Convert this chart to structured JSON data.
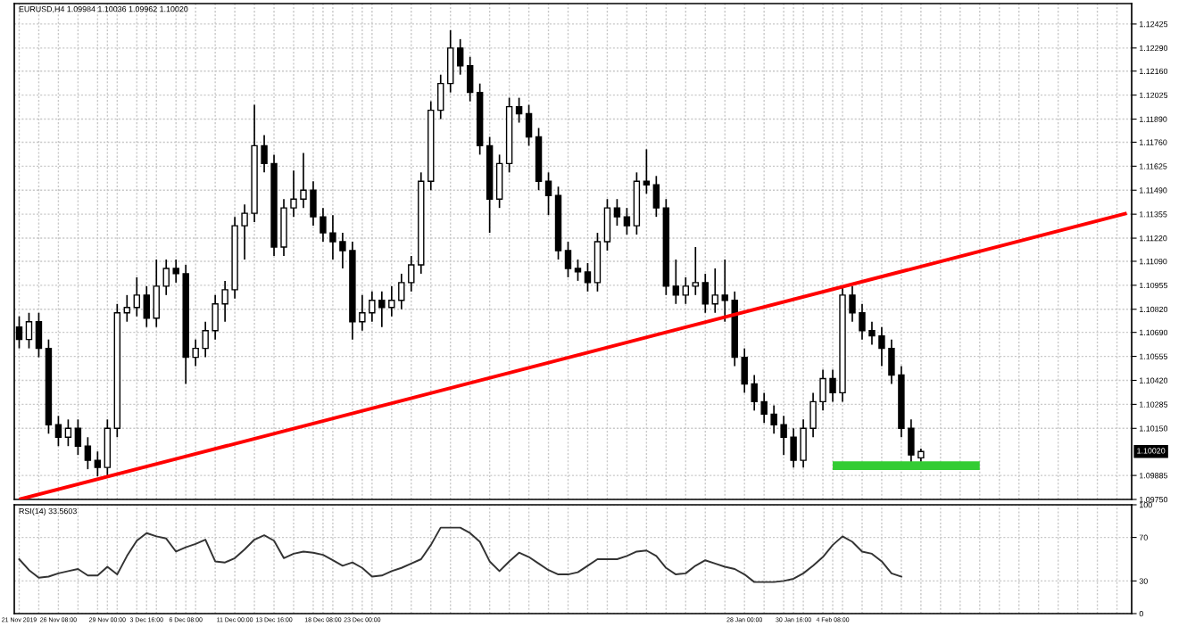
{
  "chart_data": [
    {
      "type": "candlestick",
      "title": "EURUSD,H4 1.09984 1.10036 1.09962 1.10020",
      "color": "#000000",
      "categories": [
        null,
        null,
        null,
        null,
        null,
        null,
        null,
        null,
        null,
        null,
        null,
        null,
        null,
        null,
        null,
        null,
        null,
        null,
        null,
        null,
        null,
        null,
        null,
        null,
        null,
        null,
        null,
        null,
        null,
        null,
        null,
        null,
        null,
        null,
        null,
        null,
        null,
        null,
        null,
        null,
        null,
        null,
        null,
        null,
        null,
        null,
        null,
        null,
        null,
        null,
        null,
        null,
        null,
        null,
        null,
        null,
        null,
        null,
        null,
        null,
        null,
        null,
        null,
        null,
        null,
        null,
        null,
        null,
        null,
        null,
        null,
        null,
        null,
        null,
        null,
        null,
        null,
        null,
        null,
        null,
        null,
        null,
        null,
        null,
        null,
        null,
        null,
        null,
        null,
        null,
        null,
        null,
        null,
        null,
        null,
        null,
        null,
        null,
        null,
        null,
        null,
        null,
        null,
        null,
        null,
        null,
        null,
        null,
        null,
        null,
        null,
        null,
        null,
        null
      ],
      "ohlc": [
        [
          1.1072,
          1.1078,
          1.106,
          1.1065
        ],
        [
          1.1065,
          1.108,
          1.106,
          1.1075
        ],
        [
          1.1075,
          1.108,
          1.1055,
          1.106
        ],
        [
          1.106,
          1.1065,
          1.1012,
          1.1017
        ],
        [
          1.1017,
          1.1022,
          1.1005,
          1.101
        ],
        [
          1.101,
          1.102,
          1.1005,
          1.1015
        ],
        [
          1.1015,
          1.102,
          1.1,
          1.1005
        ],
        [
          1.1005,
          1.101,
          1.0992,
          1.0997
        ],
        [
          1.0997,
          1.1002,
          1.0988,
          1.0993
        ],
        [
          1.0993,
          1.102,
          1.0988,
          1.1015
        ],
        [
          1.1015,
          1.1085,
          1.101,
          1.108
        ],
        [
          1.108,
          1.109,
          1.1075,
          1.1083
        ],
        [
          1.1083,
          1.11,
          1.1078,
          1.109
        ],
        [
          1.109,
          1.1095,
          1.1072,
          1.1077
        ],
        [
          1.1077,
          1.111,
          1.1072,
          1.1095
        ],
        [
          1.1095,
          1.111,
          1.109,
          1.1105
        ],
        [
          1.1105,
          1.111,
          1.1097,
          1.1102
        ],
        [
          1.1102,
          1.1107,
          1.104,
          1.1055
        ],
        [
          1.1055,
          1.1065,
          1.105,
          1.106
        ],
        [
          1.106,
          1.1075,
          1.1055,
          1.107
        ],
        [
          1.107,
          1.109,
          1.1065,
          1.1085
        ],
        [
          1.1085,
          1.1098,
          1.1075,
          1.1093
        ],
        [
          1.1093,
          1.1134,
          1.1088,
          1.1129
        ],
        [
          1.1129,
          1.1141,
          1.111,
          1.1136
        ],
        [
          1.1136,
          1.1197,
          1.1131,
          1.1174
        ],
        [
          1.1174,
          1.118,
          1.1159,
          1.1164
        ],
        [
          1.1164,
          1.1169,
          1.1112,
          1.1117
        ],
        [
          1.1117,
          1.1144,
          1.1112,
          1.1139
        ],
        [
          1.1139,
          1.116,
          1.1134,
          1.1144
        ],
        [
          1.1144,
          1.117,
          1.1139,
          1.1149
        ],
        [
          1.1149,
          1.1154,
          1.1129,
          1.1134
        ],
        [
          1.1134,
          1.1139,
          1.112,
          1.1125
        ],
        [
          1.1125,
          1.1135,
          1.111,
          1.112
        ],
        [
          1.112,
          1.1125,
          1.1105,
          1.1115
        ],
        [
          1.1115,
          1.112,
          1.1065,
          1.1075
        ],
        [
          1.1075,
          1.109,
          1.107,
          1.108
        ],
        [
          1.108,
          1.1092,
          1.1075,
          1.1087
        ],
        [
          1.1087,
          1.1092,
          1.1072,
          1.1083
        ],
        [
          1.1083,
          1.1095,
          1.1078,
          1.1087
        ],
        [
          1.1087,
          1.1102,
          1.1082,
          1.1097
        ],
        [
          1.1097,
          1.1112,
          1.1092,
          1.1107
        ],
        [
          1.1107,
          1.1159,
          1.1102,
          1.1154
        ],
        [
          1.1154,
          1.1199,
          1.1149,
          1.1194
        ],
        [
          1.1194,
          1.1214,
          1.1189,
          1.1209
        ],
        [
          1.1209,
          1.1239,
          1.1204,
          1.1229
        ],
        [
          1.1229,
          1.1234,
          1.1214,
          1.1219
        ],
        [
          1.1219,
          1.1224,
          1.1199,
          1.1204
        ],
        [
          1.1204,
          1.1209,
          1.1169,
          1.1174
        ],
        [
          1.1174,
          1.1179,
          1.1125,
          1.1144
        ],
        [
          1.1144,
          1.1169,
          1.1139,
          1.1164
        ],
        [
          1.1164,
          1.1201,
          1.1159,
          1.1196
        ],
        [
          1.1196,
          1.1201,
          1.1187,
          1.1192
        ],
        [
          1.1192,
          1.1197,
          1.1174,
          1.1179
        ],
        [
          1.1179,
          1.1184,
          1.1149,
          1.1154
        ],
        [
          1.1154,
          1.1159,
          1.1135,
          1.1146
        ],
        [
          1.1146,
          1.1151,
          1.111,
          1.1115
        ],
        [
          1.1115,
          1.112,
          1.11,
          1.1105
        ],
        [
          1.1105,
          1.111,
          1.1098,
          1.1103
        ],
        [
          1.1103,
          1.1108,
          1.1092,
          1.1097
        ],
        [
          1.1097,
          1.1125,
          1.1092,
          1.112
        ],
        [
          1.112,
          1.1144,
          1.1115,
          1.1139
        ],
        [
          1.1139,
          1.1144,
          1.1129,
          1.1134
        ],
        [
          1.1134,
          1.1139,
          1.1124,
          1.1129
        ],
        [
          1.1129,
          1.1159,
          1.1124,
          1.1154
        ],
        [
          1.1154,
          1.1172,
          1.1147,
          1.1152
        ],
        [
          1.1152,
          1.1157,
          1.1134,
          1.1139
        ],
        [
          1.1139,
          1.1144,
          1.109,
          1.1095
        ],
        [
          1.1095,
          1.111,
          1.1085,
          1.109
        ],
        [
          1.109,
          1.11,
          1.1085,
          1.1095
        ],
        [
          1.1095,
          1.1117,
          1.109,
          1.1097
        ],
        [
          1.1097,
          1.1102,
          1.108,
          1.1085
        ],
        [
          1.1085,
          1.1105,
          1.108,
          1.109
        ],
        [
          1.109,
          1.111,
          1.1075,
          1.1087
        ],
        [
          1.1087,
          1.1092,
          1.105,
          1.1055
        ],
        [
          1.1055,
          1.106,
          1.1035,
          1.104
        ],
        [
          1.104,
          1.1045,
          1.1025,
          1.103
        ],
        [
          1.103,
          1.1035,
          1.1018,
          1.1023
        ],
        [
          1.1023,
          1.1028,
          1.1012,
          1.1017
        ],
        [
          1.1017,
          1.1022,
          1.1,
          1.101
        ],
        [
          1.101,
          1.1015,
          1.0993,
          1.0997
        ],
        [
          1.0997,
          1.102,
          1.0993,
          1.1015
        ],
        [
          1.1015,
          1.1035,
          1.101,
          1.103
        ],
        [
          1.103,
          1.1048,
          1.1025,
          1.1043
        ],
        [
          1.1043,
          1.1048,
          1.103,
          1.1035
        ],
        [
          1.1035,
          1.1095,
          1.103,
          1.109
        ],
        [
          1.109,
          1.1095,
          1.1075,
          1.108
        ],
        [
          1.108,
          1.1085,
          1.1065,
          1.107
        ],
        [
          1.107,
          1.1075,
          1.1062,
          1.1067
        ],
        [
          1.1067,
          1.1072,
          1.105,
          1.106
        ],
        [
          1.106,
          1.1065,
          1.104,
          1.1045
        ],
        [
          1.1045,
          1.105,
          1.101,
          1.1015
        ],
        [
          1.1015,
          1.102,
          1.0995,
          1.1
        ],
        [
          1.09984,
          1.10036,
          1.09962,
          1.1002
        ],
        null,
        null,
        null,
        null,
        null,
        null,
        null,
        null,
        null,
        null,
        null,
        null,
        null,
        null,
        null,
        null,
        null,
        null,
        null,
        null,
        null
      ],
      "series": [
        {
          "type": "line",
          "color": "#ff0000",
          "values": [
            1.0975,
            null,
            null,
            null,
            null,
            null,
            null,
            null,
            null,
            null,
            null,
            null,
            null,
            null,
            null,
            null,
            null,
            null,
            null,
            null,
            null,
            null,
            null,
            null,
            null,
            null,
            null,
            null,
            null,
            null,
            null,
            null,
            null,
            null,
            null,
            null,
            null,
            null,
            null,
            null,
            null,
            null,
            null,
            null,
            null,
            null,
            null,
            null,
            null,
            null,
            null,
            null,
            null,
            null,
            null,
            null,
            null,
            null,
            null,
            null,
            null,
            null,
            null,
            null,
            null,
            null,
            null,
            null,
            null,
            null,
            null,
            null,
            null,
            null,
            null,
            null,
            null,
            null,
            null,
            null,
            null,
            null,
            null,
            null,
            null,
            null,
            null,
            null,
            null,
            null,
            null,
            null,
            null,
            null,
            null,
            null,
            null,
            null,
            null,
            null,
            null,
            null,
            null,
            null,
            null,
            null,
            null,
            null,
            null,
            null,
            null,
            null,
            null,
            1.1136
          ]
        },
        {
          "type": "line",
          "color": "#33cc33",
          "values": [
            null,
            null,
            null,
            null,
            null,
            null,
            null,
            null,
            null,
            null,
            null,
            null,
            null,
            null,
            null,
            null,
            null,
            null,
            null,
            null,
            null,
            null,
            null,
            null,
            null,
            null,
            null,
            null,
            null,
            null,
            null,
            null,
            null,
            null,
            null,
            null,
            null,
            null,
            null,
            null,
            null,
            null,
            null,
            null,
            null,
            null,
            null,
            null,
            null,
            null,
            null,
            null,
            null,
            null,
            null,
            null,
            null,
            null,
            null,
            null,
            null,
            null,
            null,
            null,
            null,
            null,
            null,
            null,
            null,
            null,
            null,
            null,
            null,
            null,
            null,
            null,
            null,
            null,
            null,
            null,
            null,
            null,
            null,
            1.0994,
            null,
            null,
            null,
            null,
            null,
            null,
            null,
            null,
            null,
            null,
            null,
            null,
            null,
            null,
            1.0994,
            null,
            null,
            null,
            null,
            null,
            null,
            null,
            null,
            null,
            null,
            null,
            null,
            null,
            null,
            null
          ]
        }
      ],
      "annotations": [
        "1.10020"
      ],
      "ylim": [
        1.0975,
        1.1254
      ],
      "yticks": [
        {
          "value": 1.12425,
          "label": "1.12425"
        },
        {
          "value": 1.1229,
          "label": "1.12290"
        },
        {
          "value": 1.1216,
          "label": "1.12160"
        },
        {
          "value": 1.12025,
          "label": "1.12025"
        },
        {
          "value": 1.1189,
          "label": "1.11890"
        },
        {
          "value": 1.1176,
          "label": "1.11760"
        },
        {
          "value": 1.11625,
          "label": "1.11625"
        },
        {
          "value": 1.1149,
          "label": "1.11490"
        },
        {
          "value": 1.11355,
          "label": "1.11355"
        },
        {
          "value": 1.1122,
          "label": "1.11220"
        },
        {
          "value": 1.1109,
          "label": "1.11090"
        },
        {
          "value": 1.10955,
          "label": "1.10955"
        },
        {
          "value": 1.1082,
          "label": "1.10820"
        },
        {
          "value": 1.1069,
          "label": "1.10690"
        },
        {
          "value": 1.10555,
          "label": "1.10555"
        },
        {
          "value": 1.1042,
          "label": "1.10420"
        },
        {
          "value": 1.10285,
          "label": "1.10285"
        },
        {
          "value": 1.1015,
          "label": "1.10150"
        },
        {
          "value": 1.09885,
          "label": "1.09885"
        },
        {
          "value": 1.0975,
          "label": "1.09750"
        }
      ],
      "tick_labels": "y",
      "grid": true
    },
    {
      "type": "line",
      "title": "RSI(14) 33.5603",
      "color": "#333333",
      "categories": [
        "21 Nov 2019",
        null,
        null,
        null,
        "26 Nov 08:00",
        null,
        null,
        null,
        null,
        "29 Nov 00:00",
        null,
        null,
        null,
        "3 Dec 16:00",
        null,
        null,
        null,
        "6 Dec 08:00",
        null,
        null,
        null,
        null,
        "11 Dec 00:00",
        null,
        null,
        null,
        "13 Dec 16:00",
        null,
        null,
        null,
        null,
        "18 Dec 08:00",
        null,
        null,
        null,
        "23 Dec 00:00",
        null,
        null,
        null,
        null,
        null,
        null,
        null,
        null,
        null,
        null,
        null,
        null,
        null,
        null,
        null,
        null,
        null,
        null,
        null,
        null,
        null,
        null,
        null,
        null,
        null,
        null,
        null,
        null,
        null,
        null,
        null,
        null,
        null,
        null,
        null,
        null,
        null,
        null,
        "28 Jan 00:00",
        null,
        null,
        null,
        null,
        "30 Jan 16:00",
        null,
        null,
        null,
        "4 Feb 08:00",
        null,
        null,
        null,
        null,
        null,
        null,
        null,
        null,
        null,
        null,
        null,
        null,
        null,
        null,
        null,
        null,
        null,
        null,
        null,
        null,
        null,
        null,
        null,
        null,
        null,
        null,
        null,
        null,
        null,
        null
      ],
      "values": [
        50,
        40,
        33,
        34,
        37,
        39,
        41,
        35,
        35,
        43,
        36,
        53,
        67,
        74,
        71,
        69,
        57,
        61,
        64,
        68,
        48,
        47,
        51,
        59,
        68,
        72,
        67,
        51,
        55,
        57,
        56,
        54,
        49,
        44,
        47,
        42,
        34,
        35,
        39,
        42,
        46,
        50,
        63,
        79,
        79,
        79,
        74,
        66,
        48,
        39,
        48,
        56,
        52,
        46,
        40,
        36,
        36,
        38,
        44,
        50,
        50,
        50,
        53,
        57,
        58,
        53,
        42,
        36,
        37,
        44,
        49,
        46,
        43,
        41,
        36,
        29,
        29,
        29,
        30,
        32,
        37,
        44,
        52,
        63,
        71,
        66,
        57,
        55,
        48,
        37,
        34,
        null,
        null,
        null,
        null,
        null,
        null,
        null,
        null,
        null,
        null,
        null,
        null,
        null,
        null,
        null,
        null,
        null,
        null,
        null,
        null,
        null,
        null,
        null
      ],
      "ylim": [
        0,
        100
      ],
      "yticks": [
        0,
        30,
        70,
        100
      ],
      "grid": true
    }
  ]
}
